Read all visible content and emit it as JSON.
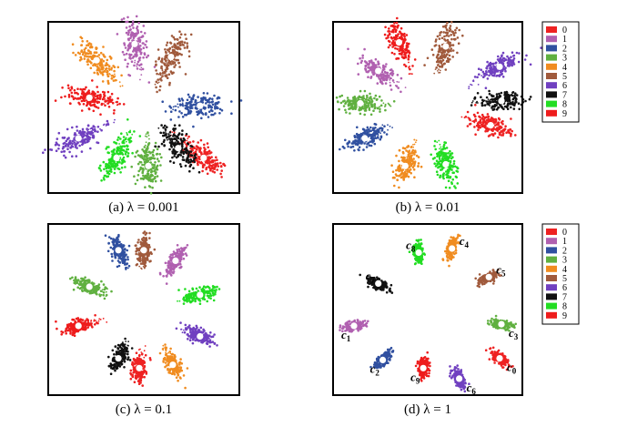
{
  "figure": {
    "legend_labels": [
      "0",
      "1",
      "2",
      "3",
      "4",
      "5",
      "6",
      "7",
      "8",
      "9"
    ],
    "class_colors": [
      "#ee2222",
      "#b060b0",
      "#3050a0",
      "#60b040",
      "#f08c20",
      "#a05a3c",
      "#7040c0",
      "#111111",
      "#22dd22",
      "#ee1c1c"
    ]
  },
  "chart_data": [
    {
      "type": "scatter",
      "panel": "a",
      "caption": "(a)  λ = 0.001",
      "grid": false,
      "legend_position": "none",
      "classes": [
        {
          "label": "0",
          "center": [
            0.66,
            -0.62
          ]
        },
        {
          "label": "1",
          "center": [
            -0.1,
            0.78
          ]
        },
        {
          "label": "2",
          "center": [
            0.62,
            0.02
          ]
        },
        {
          "label": "3",
          "center": [
            0.05,
            -0.72
          ]
        },
        {
          "label": "4",
          "center": [
            -0.52,
            0.58
          ]
        },
        {
          "label": "5",
          "center": [
            0.3,
            0.62
          ]
        },
        {
          "label": "6",
          "center": [
            -0.72,
            -0.38
          ]
        },
        {
          "label": "7",
          "center": [
            0.38,
            -0.5
          ]
        },
        {
          "label": "8",
          "center": [
            -0.3,
            -0.62
          ]
        },
        {
          "label": "9",
          "center": [
            -0.6,
            0.12
          ]
        }
      ]
    },
    {
      "type": "scatter",
      "panel": "b",
      "caption": "(b)  λ = 0.01",
      "grid": false,
      "legend_position": "right",
      "classes": [
        {
          "label": "0",
          "center": [
            0.7,
            -0.22
          ]
        },
        {
          "label": "1",
          "center": [
            -0.55,
            0.45
          ]
        },
        {
          "label": "2",
          "center": [
            -0.7,
            -0.38
          ]
        },
        {
          "label": "3",
          "center": [
            -0.75,
            0.05
          ]
        },
        {
          "label": "4",
          "center": [
            -0.25,
            -0.72
          ]
        },
        {
          "label": "5",
          "center": [
            0.2,
            0.75
          ]
        },
        {
          "label": "6",
          "center": [
            0.8,
            0.5
          ]
        },
        {
          "label": "7",
          "center": [
            0.82,
            0.08
          ]
        },
        {
          "label": "8",
          "center": [
            0.2,
            -0.7
          ]
        },
        {
          "label": "9",
          "center": [
            -0.32,
            0.8
          ]
        }
      ]
    },
    {
      "type": "scatter",
      "panel": "c",
      "caption": "(c)  λ = 0.1",
      "grid": false,
      "legend_position": "none",
      "classes": [
        {
          "label": "0",
          "center": [
            -0.05,
            -0.72
          ]
        },
        {
          "label": "1",
          "center": [
            0.35,
            0.6
          ]
        },
        {
          "label": "2",
          "center": [
            -0.28,
            0.73
          ]
        },
        {
          "label": "3",
          "center": [
            -0.6,
            0.28
          ]
        },
        {
          "label": "4",
          "center": [
            0.32,
            -0.68
          ]
        },
        {
          "label": "5",
          "center": [
            0.0,
            0.73
          ]
        },
        {
          "label": "6",
          "center": [
            0.62,
            -0.33
          ]
        },
        {
          "label": "7",
          "center": [
            -0.28,
            -0.6
          ]
        },
        {
          "label": "8",
          "center": [
            0.62,
            0.18
          ]
        },
        {
          "label": "9",
          "center": [
            -0.72,
            -0.2
          ]
        }
      ]
    },
    {
      "type": "scatter",
      "panel": "d",
      "caption": "(d)  λ = 1",
      "grid": false,
      "legend_position": "right",
      "classes": [
        {
          "label": "0",
          "center": [
            0.8,
            -0.6
          ],
          "center_label": "c",
          "center_index": "0"
        },
        {
          "label": "1",
          "center": [
            -0.82,
            -0.2
          ],
          "center_label": "c",
          "center_index": "1"
        },
        {
          "label": "2",
          "center": [
            -0.5,
            -0.62
          ],
          "center_label": "c",
          "center_index": "2"
        },
        {
          "label": "3",
          "center": [
            0.82,
            -0.18
          ],
          "center_label": "c",
          "center_index": "3"
        },
        {
          "label": "4",
          "center": [
            0.27,
            0.75
          ],
          "center_label": "c",
          "center_index": "4"
        },
        {
          "label": "5",
          "center": [
            0.68,
            0.4
          ],
          "center_label": "c",
          "center_index": "5"
        },
        {
          "label": "6",
          "center": [
            0.35,
            -0.85
          ],
          "center_label": "c",
          "center_index": "6"
        },
        {
          "label": "7",
          "center": [
            -0.55,
            0.32
          ],
          "center_label": "c",
          "center_index": "7"
        },
        {
          "label": "8",
          "center": [
            -0.1,
            0.7
          ],
          "center_label": "c",
          "center_index": "8"
        },
        {
          "label": "9",
          "center": [
            -0.05,
            -0.72
          ],
          "center_label": "c",
          "center_index": "9"
        }
      ]
    }
  ]
}
